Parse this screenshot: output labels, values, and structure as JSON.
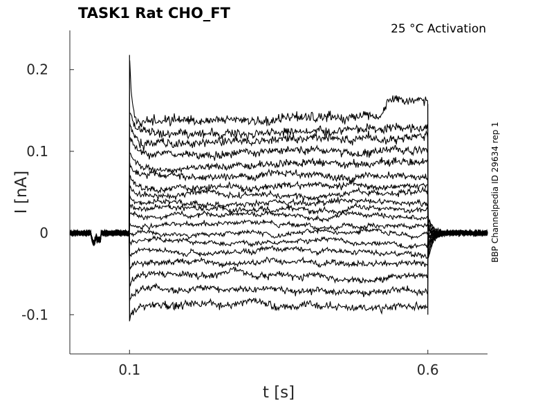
{
  "chart_data": {
    "type": "line",
    "title": "TASK1  Rat  CHO_FT",
    "subtitle": "25 °C  Activation",
    "side_label": "BBP Channelpedia ID 29634 rep 1",
    "xlabel": "t [s]",
    "ylabel": "I [nA]",
    "xlim": [
      0.0,
      0.7
    ],
    "ylim": [
      -0.148,
      0.248
    ],
    "x_ticks": [
      {
        "value": 0.1,
        "label": "0.1"
      },
      {
        "value": 0.6,
        "label": "0.6"
      }
    ],
    "y_ticks": [
      {
        "value": 0.2,
        "label": "0.2"
      },
      {
        "value": 0.1,
        "label": "0.1"
      },
      {
        "value": 0,
        "label": "0"
      },
      {
        "value": -0.1,
        "label": "-0.1"
      }
    ],
    "grid": false,
    "legend": "none",
    "line_color": "#000000",
    "step_start": 0.1,
    "step_end": 0.6,
    "baseline_current": 0.0,
    "peak_transient": 0.218,
    "series_steady_values": [
      -0.085,
      -0.067,
      -0.05,
      -0.035,
      -0.022,
      -0.01,
      0.0,
      0.01,
      0.02,
      0.028,
      0.036,
      0.045,
      0.055,
      0.067,
      0.08,
      0.095,
      0.108,
      0.12,
      0.134
    ]
  }
}
